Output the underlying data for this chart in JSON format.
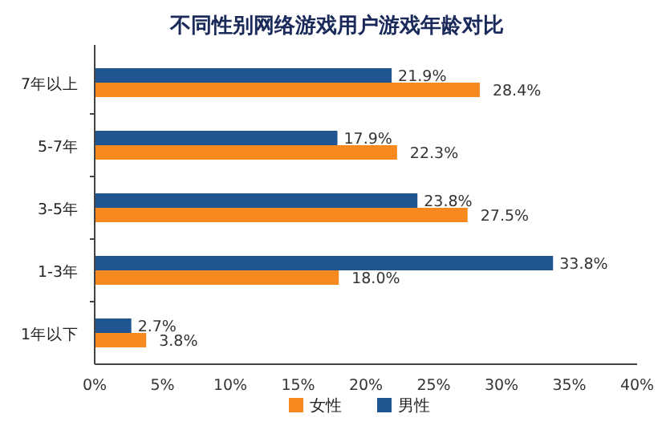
{
  "chart_data": {
    "type": "bar",
    "orientation": "horizontal",
    "title": "不同性别网络游戏用户游戏年龄对比",
    "categories": [
      "7年以上",
      "5-7年",
      "3-5年",
      "1-3年",
      "1年以下"
    ],
    "series": [
      {
        "name": "男性",
        "color": "#1f5591",
        "values": [
          21.9,
          17.9,
          23.8,
          33.8,
          2.7
        ],
        "value_labels": [
          "21.9%",
          "17.9%",
          "23.8%",
          "33.8%",
          "2.7%"
        ]
      },
      {
        "name": "女性",
        "color": "#f7891f",
        "values": [
          28.4,
          22.3,
          27.5,
          18.0,
          3.8
        ],
        "value_labels": [
          "28.4%",
          "22.3%",
          "27.5%",
          "18.0%",
          "3.8%"
        ]
      }
    ],
    "xlim": [
      0,
      40
    ],
    "xticks": [
      {
        "value": 0,
        "label": "0%"
      },
      {
        "value": 5,
        "label": "5%"
      },
      {
        "value": 10,
        "label": "10%"
      },
      {
        "value": 15,
        "label": "15%"
      },
      {
        "value": 20,
        "label": "20%"
      },
      {
        "value": 25,
        "label": "25%"
      },
      {
        "value": 30,
        "label": "30%"
      },
      {
        "value": 35,
        "label": "35%"
      },
      {
        "value": 40,
        "label": "40%"
      }
    ],
    "grid": false,
    "legend": "bottom"
  }
}
